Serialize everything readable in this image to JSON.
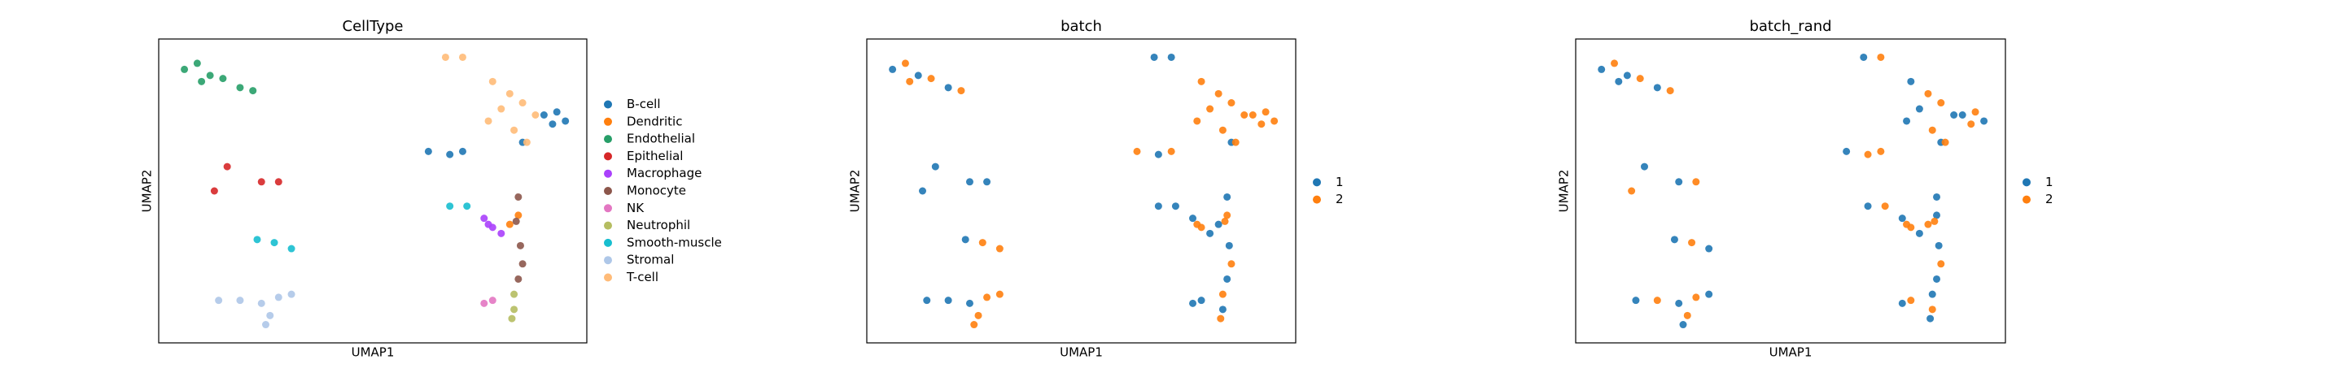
{
  "chart_data": [
    {
      "type": "scatter",
      "title": "CellType",
      "x_label": "UMAP1",
      "y_label": "UMAP2",
      "xlim": [
        0,
        10
      ],
      "ylim": [
        0,
        10
      ],
      "series": [
        {
          "name": "B-cell",
          "color": "#1f77b4",
          "x": [
            9.0,
            9.3,
            9.5,
            9.2,
            6.3,
            6.8,
            7.1,
            8.5
          ],
          "y": [
            7.5,
            7.6,
            7.3,
            7.2,
            6.3,
            6.2,
            6.3,
            6.6
          ]
        },
        {
          "name": "Dendritic",
          "color": "#ff7f0e",
          "x": [
            8.4,
            8.2
          ],
          "y": [
            4.2,
            3.9
          ]
        },
        {
          "name": "Endothelial",
          "color": "#279e68",
          "x": [
            0.6,
            0.9,
            1.2,
            1.5,
            1.9,
            2.2,
            1.0
          ],
          "y": [
            9.0,
            9.2,
            8.8,
            8.7,
            8.4,
            8.3,
            8.6
          ]
        },
        {
          "name": "Epithelial",
          "color": "#d62728",
          "x": [
            1.6,
            1.3,
            2.4,
            2.8
          ],
          "y": [
            5.8,
            5.0,
            5.3,
            5.3
          ]
        },
        {
          "name": "Macrophage",
          "color": "#aa40fc",
          "x": [
            7.6,
            7.8,
            8.0,
            7.7
          ],
          "y": [
            4.1,
            3.8,
            3.6,
            3.9
          ]
        },
        {
          "name": "Monocyte",
          "color": "#8c564b",
          "x": [
            8.4,
            8.35,
            8.45,
            8.5,
            8.4
          ],
          "y": [
            4.8,
            4.0,
            3.2,
            2.6,
            2.1
          ]
        },
        {
          "name": "NK",
          "color": "#e377c2",
          "x": [
            7.6,
            7.8
          ],
          "y": [
            1.3,
            1.4
          ]
        },
        {
          "name": "Neutrophil",
          "color": "#b5bd61",
          "x": [
            8.3,
            8.3,
            8.25
          ],
          "y": [
            1.6,
            1.1,
            0.8
          ]
        },
        {
          "name": "Smooth-muscle",
          "color": "#17becf",
          "x": [
            6.8,
            7.2,
            2.3,
            2.7,
            3.1
          ],
          "y": [
            4.5,
            4.5,
            3.4,
            3.3,
            3.1
          ]
        },
        {
          "name": "Stromal",
          "color": "#aec7e8",
          "x": [
            1.4,
            1.9,
            2.4,
            2.8,
            3.1,
            2.6,
            2.5
          ],
          "y": [
            1.4,
            1.4,
            1.3,
            1.5,
            1.6,
            0.9,
            0.6
          ]
        },
        {
          "name": "T-cell",
          "color": "#ffbb78",
          "x": [
            6.7,
            7.1,
            7.8,
            8.2,
            8.0,
            8.5,
            8.8,
            8.3,
            7.7,
            8.6
          ],
          "y": [
            9.4,
            9.4,
            8.6,
            8.2,
            7.7,
            7.9,
            7.5,
            7.0,
            7.3,
            6.6
          ]
        }
      ]
    },
    {
      "type": "scatter",
      "title": "batch",
      "x_label": "UMAP1",
      "y_label": "UMAP2",
      "xlim": [
        0,
        10
      ],
      "ylim": [
        0,
        10
      ],
      "series": [
        {
          "name": "1",
          "color": "#1f77b4",
          "x": [
            0.6,
            1.2,
            1.9,
            1.6,
            1.3,
            2.4,
            2.8,
            6.7,
            7.1,
            6.8,
            8.5,
            6.8,
            7.2,
            2.3,
            7.6,
            8.0,
            8.4,
            8.45,
            8.4,
            7.6,
            7.8,
            8.3,
            1.4,
            1.9,
            2.4,
            8.2
          ],
          "y": [
            9.0,
            8.8,
            8.4,
            5.8,
            5.0,
            5.3,
            5.3,
            9.4,
            9.4,
            6.2,
            6.6,
            4.5,
            4.5,
            3.4,
            4.1,
            3.6,
            4.8,
            3.2,
            2.1,
            1.3,
            1.4,
            1.1,
            1.4,
            1.4,
            1.3,
            3.9
          ]
        },
        {
          "name": "2",
          "color": "#ff7f0e",
          "x": [
            9.0,
            9.3,
            9.5,
            9.2,
            6.3,
            7.1,
            8.4,
            0.9,
            1.5,
            2.2,
            1.0,
            7.8,
            7.7,
            8.35,
            8.5,
            8.3,
            8.25,
            2.7,
            3.1,
            2.8,
            3.1,
            2.6,
            2.5,
            7.8,
            8.2,
            8.0,
            8.5,
            8.8,
            8.3,
            7.7,
            8.6
          ],
          "y": [
            7.5,
            7.6,
            7.3,
            7.2,
            6.3,
            6.3,
            4.2,
            9.2,
            8.7,
            8.3,
            8.6,
            3.8,
            3.9,
            4.0,
            2.6,
            1.6,
            0.8,
            3.3,
            3.1,
            1.5,
            1.6,
            0.9,
            0.6,
            8.6,
            8.2,
            7.7,
            7.9,
            7.5,
            7.0,
            7.3,
            6.6
          ]
        }
      ]
    },
    {
      "type": "scatter",
      "title": "batch_rand",
      "x_label": "UMAP1",
      "y_label": "UMAP2",
      "xlim": [
        0,
        10
      ],
      "ylim": [
        0,
        10
      ],
      "series": [
        {
          "name": "1",
          "color": "#1f77b4",
          "x": [
            9.0,
            9.5,
            6.3,
            8.5,
            8.4,
            0.6,
            1.2,
            1.9,
            1.0,
            1.6,
            2.4,
            7.6,
            8.0,
            8.4,
            8.45,
            8.4,
            7.6,
            8.3,
            8.25,
            6.8,
            2.3,
            3.1,
            1.4,
            2.4,
            3.1,
            2.5,
            6.7,
            7.8,
            8.0,
            8.8,
            7.7
          ],
          "y": [
            7.5,
            7.3,
            6.3,
            6.6,
            4.2,
            9.0,
            8.8,
            8.4,
            8.6,
            5.8,
            5.3,
            4.1,
            3.6,
            4.8,
            3.2,
            2.1,
            1.3,
            1.6,
            0.8,
            4.5,
            3.4,
            3.1,
            1.4,
            1.3,
            1.6,
            0.6,
            9.4,
            8.6,
            7.7,
            7.5,
            7.3
          ]
        },
        {
          "name": "2",
          "color": "#ff7f0e",
          "x": [
            9.3,
            9.2,
            6.8,
            7.1,
            8.2,
            0.9,
            1.5,
            2.2,
            1.3,
            2.8,
            7.8,
            7.7,
            8.35,
            8.5,
            7.8,
            8.3,
            7.2,
            2.7,
            1.9,
            2.8,
            2.6,
            7.1,
            8.2,
            8.5,
            8.3,
            8.6
          ],
          "y": [
            7.6,
            7.2,
            6.2,
            6.3,
            3.9,
            9.2,
            8.7,
            8.3,
            5.0,
            5.3,
            3.8,
            3.9,
            4.0,
            2.6,
            1.4,
            1.1,
            4.5,
            3.3,
            1.4,
            1.5,
            0.9,
            9.4,
            8.2,
            7.9,
            7.0,
            6.6
          ]
        }
      ]
    }
  ]
}
